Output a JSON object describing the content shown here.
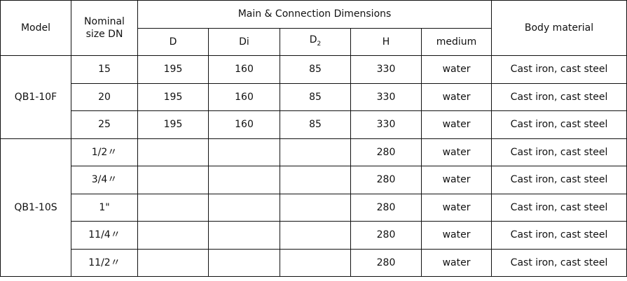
{
  "header": {
    "model": "Model",
    "nominal_line1": "Nominal",
    "nominal_line2": "size DN",
    "group": "Main & Connection Dimensions",
    "cols": {
      "D": "D",
      "Di": "Di",
      "D2_base": "D",
      "D2_sub": "2",
      "H": "H",
      "medium": "medium"
    },
    "body_material": "Body material"
  },
  "groups": [
    {
      "model": "QB1-10F",
      "rows": [
        {
          "dn": "15",
          "D": "195",
          "Di": "160",
          "D2": "85",
          "H": "330",
          "medium": "water",
          "material": "Cast iron, cast steel"
        },
        {
          "dn": "20",
          "D": "195",
          "Di": "160",
          "D2": "85",
          "H": "330",
          "medium": "water",
          "material": "Cast iron, cast steel"
        },
        {
          "dn": "25",
          "D": "195",
          "Di": "160",
          "D2": "85",
          "H": "330",
          "medium": "water",
          "material": "Cast iron, cast steel"
        }
      ]
    },
    {
      "model": "QB1-10S",
      "rows": [
        {
          "dn": "1/2〃",
          "D": "",
          "Di": "",
          "D2": "",
          "H": "280",
          "medium": "water",
          "material": "Cast iron, cast steel"
        },
        {
          "dn": "3/4〃",
          "D": "",
          "Di": "",
          "D2": "",
          "H": "280",
          "medium": "water",
          "material": "Cast iron, cast steel"
        },
        {
          "dn": "1\"",
          "D": "",
          "Di": "",
          "D2": "",
          "H": "280",
          "medium": "water",
          "material": "Cast iron, cast steel"
        },
        {
          "dn": "11/4〃",
          "D": "",
          "Di": "",
          "D2": "",
          "H": "280",
          "medium": "water",
          "material": "Cast iron, cast steel"
        },
        {
          "dn": "11/2〃",
          "D": "",
          "Di": "",
          "D2": "",
          "H": "280",
          "medium": "water",
          "material": "Cast iron, cast steel"
        }
      ]
    }
  ]
}
